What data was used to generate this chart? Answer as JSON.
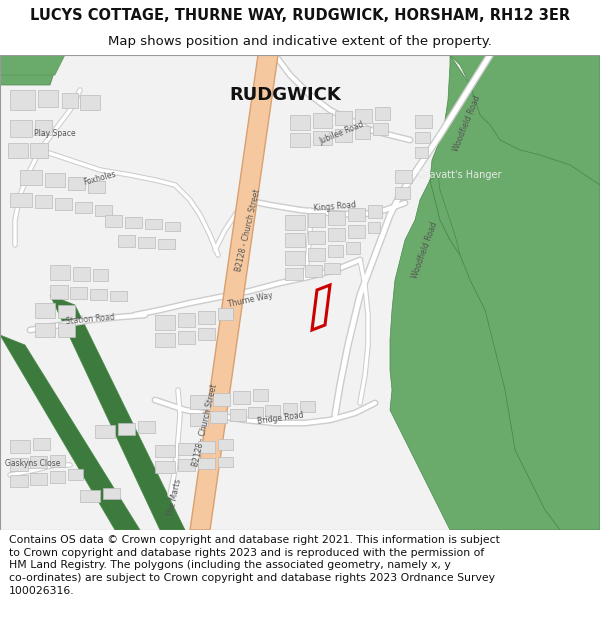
{
  "title_line1": "LUCYS COTTAGE, THURNE WAY, RUDGWICK, HORSHAM, RH12 3ER",
  "title_line2": "Map shows position and indicative extent of the property.",
  "footer_lines": [
    "Contains OS data © Crown copyright and database right 2021. This information is subject to Crown copyright and database rights 2023 and is reproduced with the permission of",
    "HM Land Registry. The polygons (including the associated geometry, namely x, y co-ordinates) are subject to Crown copyright and database rights 2023 Ordnance Survey",
    "100026316."
  ],
  "map_bg": "#f2f2f2",
  "building_fill": "#e0e0e0",
  "building_edge": "#bbbbbb",
  "green_woodland": "#6aaa6a",
  "green_dark": "#4a8a4a",
  "green_stripe": "#3d7a3d",
  "road_major_fill": "#f5c8a0",
  "road_major_edge": "#d9a070",
  "road_white": "#ffffff",
  "road_edge": "#cccccc",
  "plot_edge": "#cc0000",
  "text_dark": "#333333",
  "text_label": "#555555"
}
